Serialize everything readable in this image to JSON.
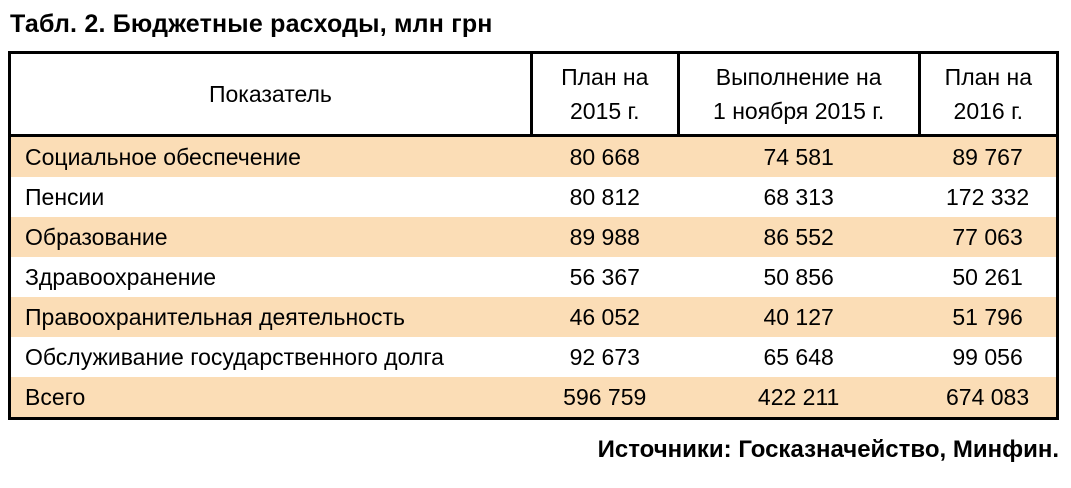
{
  "title": "Табл. 2. Бюджетные расходы, млн грн",
  "footer": "Источники: Госказначейство, Минфин.",
  "colors": {
    "highlight": "#fbddb6",
    "border": "#000000"
  },
  "table": {
    "columns": [
      {
        "line1": "Показатель",
        "line2": ""
      },
      {
        "line1": "План на",
        "line2": "2015 г."
      },
      {
        "line1": "Выполнение на",
        "line2": "1 ноября 2015 г."
      },
      {
        "line1": "План на",
        "line2": "2016 г."
      }
    ],
    "rows": [
      {
        "indicator": "Социальное обеспечение",
        "plan_2015": "80 668",
        "execution": "74 581",
        "plan_2016": "89 767",
        "highlight": true
      },
      {
        "indicator": "Пенсии",
        "plan_2015": "80 812",
        "execution": "68 313",
        "plan_2016": "172 332",
        "highlight": false
      },
      {
        "indicator": "Образование",
        "plan_2015": "89 988",
        "execution": "86 552",
        "plan_2016": "77 063",
        "highlight": true
      },
      {
        "indicator": "Здравоохранение",
        "plan_2015": "56 367",
        "execution": "50 856",
        "plan_2016": "50 261",
        "highlight": false
      },
      {
        "indicator": "Правоохранительная деятельность",
        "plan_2015": "46 052",
        "execution": "40 127",
        "plan_2016": "51 796",
        "highlight": true
      },
      {
        "indicator": "Обслуживание государственного долга",
        "plan_2015": "92 673",
        "execution": "65 648",
        "plan_2016": "99 056",
        "highlight": false
      },
      {
        "indicator": "Всего",
        "plan_2015": "596 759",
        "execution": "422 211",
        "plan_2016": "674 083",
        "highlight": true
      }
    ]
  },
  "chart_data": {
    "type": "table",
    "title": "Табл. 2. Бюджетные расходы, млн грн",
    "columns": [
      "Показатель",
      "План на 2015 г.",
      "Выполнение на 1 ноября 2015 г.",
      "План на 2016 г."
    ],
    "rows": [
      [
        "Социальное обеспечение",
        80668,
        74581,
        89767
      ],
      [
        "Пенсии",
        80812,
        68313,
        172332
      ],
      [
        "Образование",
        89988,
        86552,
        77063
      ],
      [
        "Здравоохранение",
        56367,
        50856,
        50261
      ],
      [
        "Правоохранительная деятельность",
        46052,
        40127,
        51796
      ],
      [
        "Обслуживание государственного долга",
        92673,
        65648,
        99056
      ],
      [
        "Всего",
        596759,
        422211,
        674083
      ]
    ],
    "units": "млн грн",
    "source": "Источники: Госказначейство, Минфин."
  }
}
